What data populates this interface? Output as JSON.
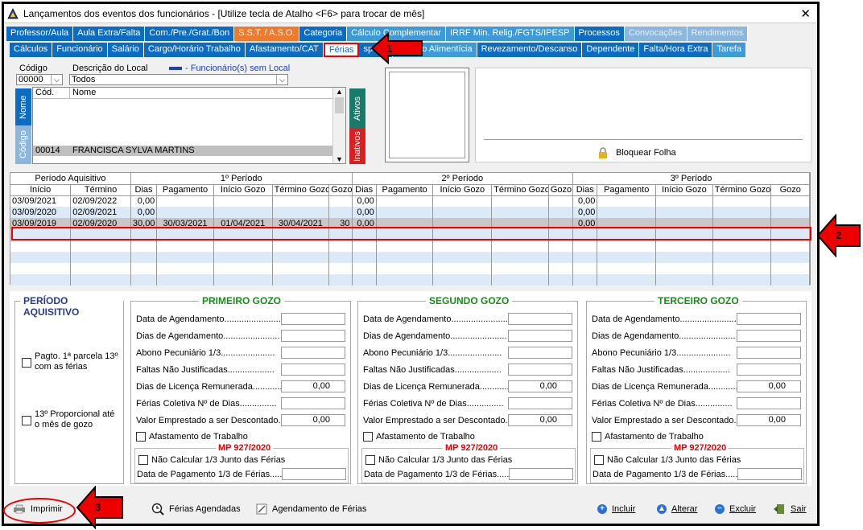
{
  "title": "Lançamentos dos eventos dos funcionários - [Utilize tecla de Atalho <F6> para trocar de mês]",
  "tabs_row1": [
    {
      "label": "Professor/Aula",
      "cls": "blue"
    },
    {
      "label": "Aula Extra/Falta",
      "cls": "blue"
    },
    {
      "label": "Com./Pre./Grat./Bon",
      "cls": "blue"
    },
    {
      "label": "S.S.T. / A.S.O.",
      "cls": "orange"
    },
    {
      "label": "Categoria",
      "cls": "blue"
    },
    {
      "label": "Cálculo Complementar",
      "cls": "ltblue"
    },
    {
      "label": "IRRF Min. Relig./FGTS/IPESP",
      "cls": "ltblue"
    },
    {
      "label": "Processos",
      "cls": "blue"
    },
    {
      "label": "Convocações",
      "cls": "grayblue"
    },
    {
      "label": "Rendimentos",
      "cls": "grayblue"
    }
  ],
  "tabs_row2": [
    {
      "label": "Cálculos",
      "cls": "blue"
    },
    {
      "label": "Funcionário",
      "cls": "blue"
    },
    {
      "label": "Salário",
      "cls": "blue"
    },
    {
      "label": "Cargo/Horário Trabalho",
      "cls": "blue"
    },
    {
      "label": "Afastamento/CAT",
      "cls": "blue"
    },
    {
      "label": "Férias",
      "cls": "sel"
    },
    {
      "label": "sporte",
      "cls": "blue"
    },
    {
      "label": "Pensão Alimentícia",
      "cls": "ltblue"
    },
    {
      "label": "Revezamento/Descanso",
      "cls": "blue"
    },
    {
      "label": "Dependente",
      "cls": "blue"
    },
    {
      "label": "Falta/Hora Extra",
      "cls": "blue"
    },
    {
      "label": "Tarefa",
      "cls": "ltblue"
    }
  ],
  "filters": {
    "codigo_label": "Código",
    "codigo_value": "00000",
    "descricao_label": "Descrição do Local",
    "descricao_value": "Todos",
    "legend_text": "- Funcionário(s) sem Local"
  },
  "employee_list": {
    "col_cod": "Cód.",
    "col_nome": "Nome",
    "rows": [
      {
        "cod": "00014",
        "nome": "FRANCISCA SYLVA MARTINS"
      }
    ],
    "vtab_nome": "Nome",
    "vtab_codigo": "Código",
    "vtab_ativos": "Ativos",
    "vtab_inativos": "Inativos"
  },
  "bloquear_folha": "Bloquear Folha",
  "grid": {
    "group_pa": "Período Aquisitivo",
    "group_p1": "1º Período",
    "group_p2": "2º Período",
    "group_p3": "3º Período",
    "cols": [
      "Início",
      "Término",
      "Dias",
      "Pagamento",
      "Início Gozo",
      "Término Gozo",
      "Gozo",
      "Dias",
      "Pagamento",
      "Início Gozo",
      "Término Gozo",
      "Gozo",
      "Dias",
      "Pagamento",
      "Início Gozo",
      "Término Gozo",
      "Gozo"
    ],
    "rows": [
      [
        "03/09/2021",
        "02/09/2022",
        "0,00",
        "",
        "",
        "",
        "",
        "0,00",
        "",
        "",
        "",
        "",
        "0,00",
        "",
        "",
        "",
        ""
      ],
      [
        "03/09/2020",
        "02/09/2021",
        "0,00",
        "",
        "",
        "",
        "",
        "0,00",
        "",
        "",
        "",
        "",
        "0,00",
        "",
        "",
        "",
        ""
      ],
      [
        "03/09/2019",
        "02/09/2020",
        "30,00",
        "30/03/2021",
        "01/04/2021",
        "30/04/2021",
        "30",
        "0,00",
        "",
        "",
        "",
        "",
        "0,00",
        "",
        "",
        "",
        ""
      ]
    ]
  },
  "periodo_aquisitivo": {
    "title": "PERÍODO AQUISITIVO",
    "chk1": "Pagto. 1ª parcela 13º com as férias",
    "chk2": "13º Proporcional até o mês de gozo"
  },
  "gozo_titles": [
    "PRIMEIRO GOZO",
    "SEGUNDO GOZO",
    "TERCEIRO GOZO"
  ],
  "gozo_fields": [
    {
      "label": "Data de Agendamento........................",
      "value": ""
    },
    {
      "label": "Dias de Agendamento.......................",
      "value": ""
    },
    {
      "label": "Abono Pecuniário 1/3......................",
      "value": ""
    },
    {
      "label": "Faltas Não Justificadas...................",
      "value": ""
    },
    {
      "label": "Dias de Licença Remunerada............",
      "value": "0,00"
    },
    {
      "label": "Férias Coletiva Nº de Dias...............",
      "value": ""
    },
    {
      "label": "Valor Emprestado a ser Descontado..",
      "value": "0,00"
    }
  ],
  "afastamento": "Afastamento de Trabalho",
  "mp": "MP 927/2020",
  "nao_calcular": "Não Calcular 1/3 Junto das Férias",
  "data_pagamento": "Data de Pagamento 1/3 de Férias.......",
  "bottom": {
    "imprimir": "Imprimir",
    "ferias_agendadas": "Férias Agendadas",
    "agendamento": "Agendamento de Férias",
    "incluir": "Incluir",
    "alterar": "Alterar",
    "excluir": "Excluir",
    "sair": "Sair"
  },
  "callouts": [
    "1",
    "2",
    "3"
  ]
}
